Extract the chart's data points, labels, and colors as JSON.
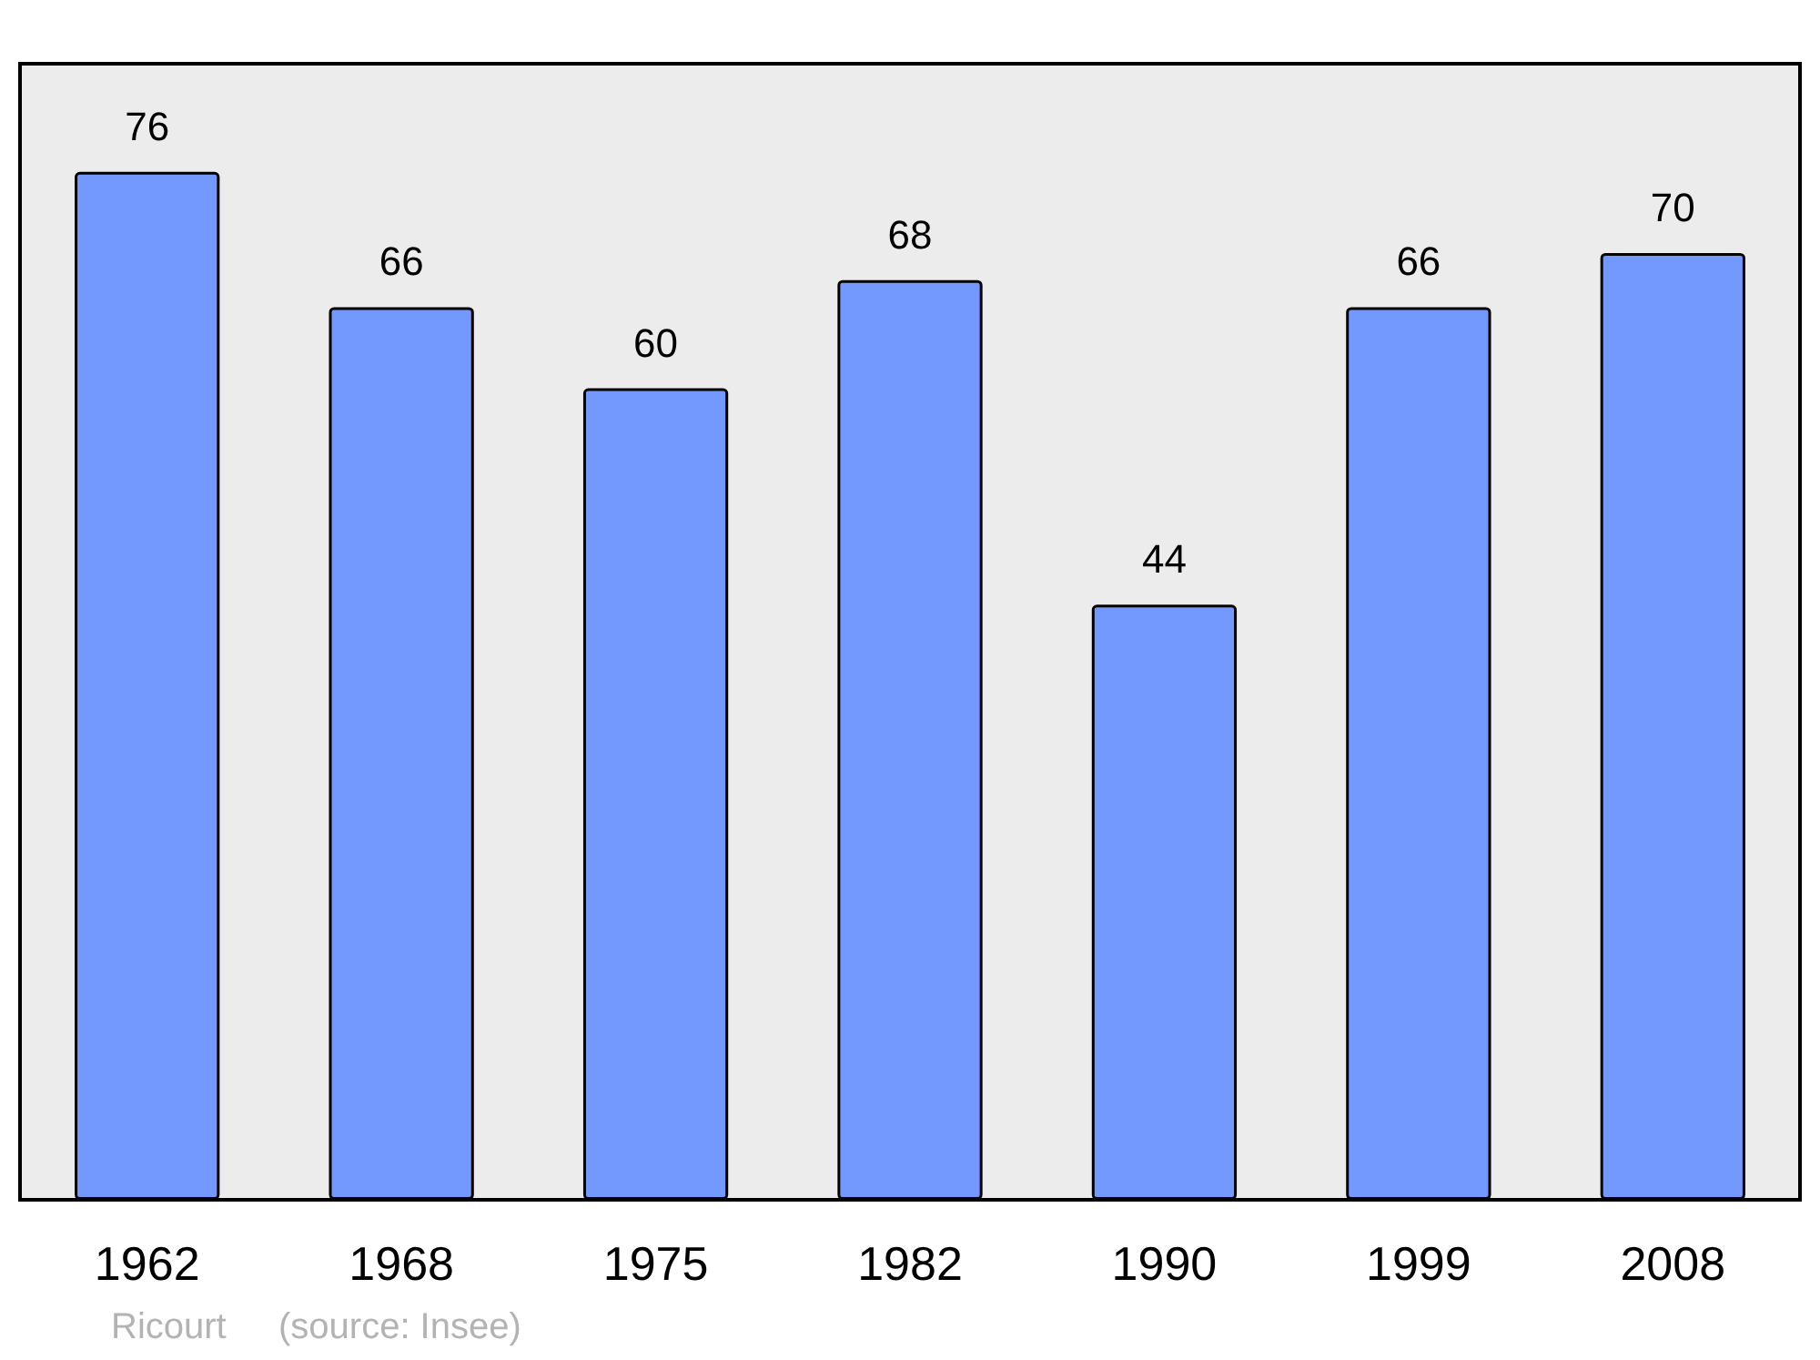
{
  "chart_data": {
    "type": "bar",
    "categories": [
      "1962",
      "1968",
      "1975",
      "1982",
      "1990",
      "1999",
      "2008"
    ],
    "values": [
      76,
      66,
      60,
      68,
      44,
      66,
      70
    ],
    "color": "#7399ff",
    "data_labels": true,
    "ylim": [
      0,
      84
    ],
    "grid": false,
    "annotations": [
      "Ricourt",
      "(source: Insee)"
    ]
  }
}
